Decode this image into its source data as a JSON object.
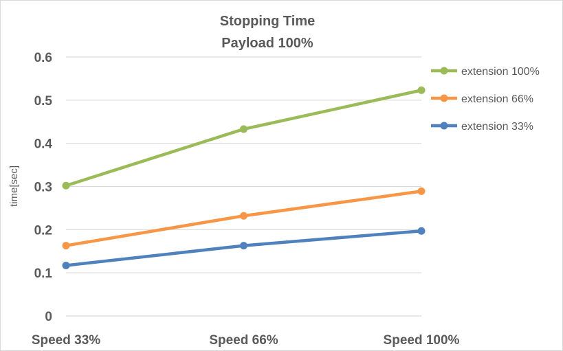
{
  "chart_data": {
    "type": "line",
    "title": "Stopping Time",
    "subtitle": "Payload 100%",
    "xlabel": "",
    "ylabel": "time[sec]",
    "ylim": [
      0,
      0.6
    ],
    "yticks": [
      "0",
      "0.1",
      "0.2",
      "0.3",
      "0.4",
      "0.5",
      "0.6"
    ],
    "grid": true,
    "legend_position": "right",
    "categories": [
      "Speed 33%",
      "Speed 66%",
      "Speed 100%"
    ],
    "series": [
      {
        "name": "extension 100%",
        "color": "#9bbb59",
        "values": [
          0.302,
          0.433,
          0.523
        ]
      },
      {
        "name": "extension 66%",
        "color": "#f79646",
        "values": [
          0.163,
          0.232,
          0.289
        ]
      },
      {
        "name": "extension 33%",
        "color": "#4f81bd",
        "values": [
          0.117,
          0.163,
          0.197
        ]
      }
    ]
  }
}
